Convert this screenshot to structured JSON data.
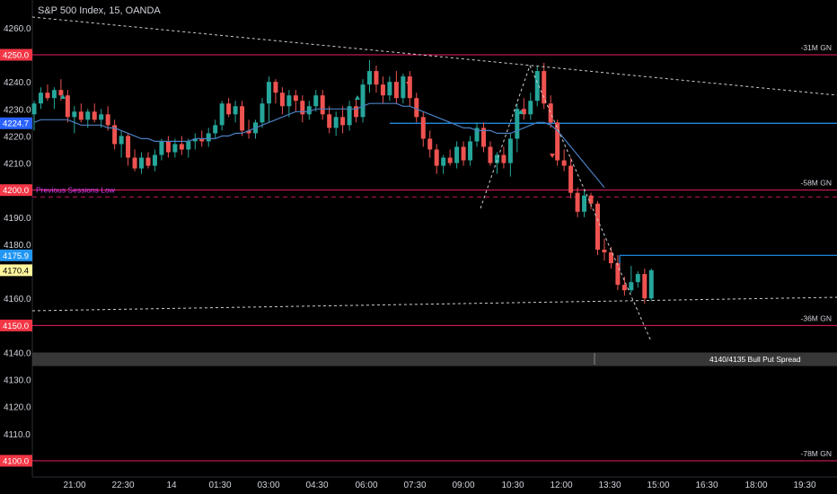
{
  "chart_data": {
    "type": "candlestick",
    "title": "S&P 500 Index, 15, OANDA",
    "x_ticks": [
      "21:00",
      "22:30",
      "14",
      "01:30",
      "03:00",
      "04:30",
      "06:00",
      "07:30",
      "09:00",
      "10:30",
      "12:00",
      "13:30",
      "15:00",
      "16:30",
      "18:00",
      "19:30"
    ],
    "y_ticks": [
      4260.0,
      4250.0,
      4240.0,
      4230.0,
      4220.0,
      4210.0,
      4200.0,
      4190.0,
      4180.0,
      4170.0,
      4160.0,
      4150.0,
      4140.0,
      4130.0,
      4120.0,
      4110.0,
      4100.0
    ],
    "ylim": [
      4095.6,
      4272.8
    ],
    "candles": [
      {
        "o": 4228,
        "h": 4233,
        "l": 4222,
        "c": 4232
      },
      {
        "o": 4232,
        "h": 4238,
        "l": 4230,
        "c": 4236
      },
      {
        "o": 4236,
        "h": 4239,
        "l": 4233,
        "c": 4234
      },
      {
        "o": 4234,
        "h": 4238,
        "l": 4230,
        "c": 4237
      },
      {
        "o": 4237,
        "h": 4241,
        "l": 4233,
        "c": 4235
      },
      {
        "o": 4235,
        "h": 4237,
        "l": 4225,
        "c": 4227
      },
      {
        "o": 4227,
        "h": 4231,
        "l": 4221,
        "c": 4229
      },
      {
        "o": 4229,
        "h": 4232,
        "l": 4225,
        "c": 4226
      },
      {
        "o": 4226,
        "h": 4230,
        "l": 4223,
        "c": 4229
      },
      {
        "o": 4229,
        "h": 4232,
        "l": 4225,
        "c": 4226
      },
      {
        "o": 4226,
        "h": 4230,
        "l": 4223,
        "c": 4228
      },
      {
        "o": 4228,
        "h": 4231,
        "l": 4222,
        "c": 4224
      },
      {
        "o": 4224,
        "h": 4226,
        "l": 4215,
        "c": 4217
      },
      {
        "o": 4217,
        "h": 4222,
        "l": 4212,
        "c": 4220
      },
      {
        "o": 4220,
        "h": 4221,
        "l": 4209,
        "c": 4212
      },
      {
        "o": 4212,
        "h": 4215,
        "l": 4207,
        "c": 4208
      },
      {
        "o": 4208,
        "h": 4214,
        "l": 4206,
        "c": 4212
      },
      {
        "o": 4212,
        "h": 4214,
        "l": 4208,
        "c": 4209
      },
      {
        "o": 4209,
        "h": 4215,
        "l": 4207,
        "c": 4213
      },
      {
        "o": 4213,
        "h": 4219,
        "l": 4211,
        "c": 4218
      },
      {
        "o": 4218,
        "h": 4220,
        "l": 4212,
        "c": 4214
      },
      {
        "o": 4214,
        "h": 4219,
        "l": 4212,
        "c": 4217
      },
      {
        "o": 4217,
        "h": 4220,
        "l": 4213,
        "c": 4215
      },
      {
        "o": 4215,
        "h": 4219,
        "l": 4212,
        "c": 4218
      },
      {
        "o": 4218,
        "h": 4221,
        "l": 4215,
        "c": 4219
      },
      {
        "o": 4219,
        "h": 4222,
        "l": 4216,
        "c": 4218
      },
      {
        "o": 4218,
        "h": 4223,
        "l": 4216,
        "c": 4221
      },
      {
        "o": 4221,
        "h": 4226,
        "l": 4219,
        "c": 4224
      },
      {
        "o": 4224,
        "h": 4233,
        "l": 4222,
        "c": 4232
      },
      {
        "o": 4232,
        "h": 4234,
        "l": 4227,
        "c": 4228
      },
      {
        "o": 4228,
        "h": 4233,
        "l": 4225,
        "c": 4231
      },
      {
        "o": 4231,
        "h": 4233,
        "l": 4220,
        "c": 4222
      },
      {
        "o": 4222,
        "h": 4226,
        "l": 4219,
        "c": 4221
      },
      {
        "o": 4221,
        "h": 4226,
        "l": 4219,
        "c": 4225
      },
      {
        "o": 4225,
        "h": 4234,
        "l": 4223,
        "c": 4232
      },
      {
        "o": 4232,
        "h": 4242,
        "l": 4225,
        "c": 4240
      },
      {
        "o": 4240,
        "h": 4241,
        "l": 4232,
        "c": 4236
      },
      {
        "o": 4236,
        "h": 4238,
        "l": 4228,
        "c": 4231
      },
      {
        "o": 4231,
        "h": 4237,
        "l": 4227,
        "c": 4235
      },
      {
        "o": 4235,
        "h": 4237,
        "l": 4229,
        "c": 4233
      },
      {
        "o": 4233,
        "h": 4235,
        "l": 4225,
        "c": 4228
      },
      {
        "o": 4228,
        "h": 4233,
        "l": 4226,
        "c": 4231
      },
      {
        "o": 4231,
        "h": 4237,
        "l": 4229,
        "c": 4235
      },
      {
        "o": 4235,
        "h": 4237,
        "l": 4226,
        "c": 4228
      },
      {
        "o": 4228,
        "h": 4231,
        "l": 4221,
        "c": 4223
      },
      {
        "o": 4223,
        "h": 4229,
        "l": 4220,
        "c": 4227
      },
      {
        "o": 4227,
        "h": 4231,
        "l": 4221,
        "c": 4224
      },
      {
        "o": 4224,
        "h": 4233,
        "l": 4222,
        "c": 4231
      },
      {
        "o": 4231,
        "h": 4234,
        "l": 4225,
        "c": 4227
      },
      {
        "o": 4227,
        "h": 4241,
        "l": 4225,
        "c": 4239
      },
      {
        "o": 4239,
        "h": 4248,
        "l": 4236,
        "c": 4244
      },
      {
        "o": 4244,
        "h": 4246,
        "l": 4236,
        "c": 4239
      },
      {
        "o": 4239,
        "h": 4242,
        "l": 4232,
        "c": 4235
      },
      {
        "o": 4235,
        "h": 4242,
        "l": 4233,
        "c": 4240
      },
      {
        "o": 4240,
        "h": 4244,
        "l": 4232,
        "c": 4234
      },
      {
        "o": 4234,
        "h": 4243,
        "l": 4232,
        "c": 4242
      },
      {
        "o": 4242,
        "h": 4244,
        "l": 4231,
        "c": 4234
      },
      {
        "o": 4234,
        "h": 4236,
        "l": 4225,
        "c": 4227
      },
      {
        "o": 4227,
        "h": 4229,
        "l": 4216,
        "c": 4219
      },
      {
        "o": 4219,
        "h": 4222,
        "l": 4212,
        "c": 4215
      },
      {
        "o": 4215,
        "h": 4217,
        "l": 4206,
        "c": 4209
      },
      {
        "o": 4209,
        "h": 4213,
        "l": 4206,
        "c": 4212
      },
      {
        "o": 4212,
        "h": 4215,
        "l": 4209,
        "c": 4210
      },
      {
        "o": 4210,
        "h": 4218,
        "l": 4208,
        "c": 4216
      },
      {
        "o": 4216,
        "h": 4218,
        "l": 4209,
        "c": 4211
      },
      {
        "o": 4211,
        "h": 4220,
        "l": 4209,
        "c": 4218
      },
      {
        "o": 4218,
        "h": 4225,
        "l": 4216,
        "c": 4223
      },
      {
        "o": 4223,
        "h": 4225,
        "l": 4214,
        "c": 4216
      },
      {
        "o": 4216,
        "h": 4218,
        "l": 4209,
        "c": 4210
      },
      {
        "o": 4210,
        "h": 4214,
        "l": 4206,
        "c": 4213
      },
      {
        "o": 4213,
        "h": 4216,
        "l": 4208,
        "c": 4210
      },
      {
        "o": 4210,
        "h": 4221,
        "l": 4205,
        "c": 4219
      },
      {
        "o": 4219,
        "h": 4232,
        "l": 4214,
        "c": 4230
      },
      {
        "o": 4230,
        "h": 4234,
        "l": 4226,
        "c": 4228
      },
      {
        "o": 4228,
        "h": 4236,
        "l": 4226,
        "c": 4233
      },
      {
        "o": 4233,
        "h": 4246,
        "l": 4231,
        "c": 4244
      },
      {
        "o": 4244,
        "h": 4247,
        "l": 4230,
        "c": 4232
      },
      {
        "o": 4232,
        "h": 4235,
        "l": 4223,
        "c": 4225
      },
      {
        "o": 4225,
        "h": 4226,
        "l": 4209,
        "c": 4211
      },
      {
        "o": 4211,
        "h": 4215,
        "l": 4207,
        "c": 4209
      },
      {
        "o": 4209,
        "h": 4212,
        "l": 4197,
        "c": 4199
      },
      {
        "o": 4199,
        "h": 4201,
        "l": 4190,
        "c": 4192
      },
      {
        "o": 4192,
        "h": 4200,
        "l": 4190,
        "c": 4198
      },
      {
        "o": 4198,
        "h": 4199,
        "l": 4193,
        "c": 4195
      },
      {
        "o": 4195,
        "h": 4196,
        "l": 4176,
        "c": 4178
      },
      {
        "o": 4178,
        "h": 4182,
        "l": 4174,
        "c": 4177
      },
      {
        "o": 4177,
        "h": 4179,
        "l": 4171,
        "c": 4173
      },
      {
        "o": 4173,
        "h": 4176,
        "l": 4163,
        "c": 4165
      },
      {
        "o": 4165,
        "h": 4168,
        "l": 4161,
        "c": 4163
      },
      {
        "o": 4163,
        "h": 4172,
        "l": 4162,
        "c": 4166
      },
      {
        "o": 4166,
        "h": 4170,
        "l": 4164,
        "c": 4169
      },
      {
        "o": 4169,
        "h": 4171,
        "l": 4158,
        "c": 4160
      },
      {
        "o": 4160,
        "h": 4171,
        "l": 4159,
        "c": 4170.4
      }
    ],
    "ma_line": [
      4225,
      4226,
      4226,
      4226,
      4226,
      4226,
      4225,
      4224,
      4224,
      4224,
      4224,
      4223,
      4223,
      4222,
      4221,
      4220,
      4219,
      4219,
      4218,
      4218,
      4218,
      4218,
      4218,
      4218,
      4219,
      4219,
      4219,
      4219,
      4220,
      4220,
      4221,
      4221,
      4222,
      4223,
      4224,
      4225,
      4226,
      4227,
      4228,
      4229,
      4229,
      4229,
      4230,
      4230,
      4230,
      4230,
      4230,
      4230,
      4230,
      4231,
      4232,
      4232,
      4232,
      4232,
      4232,
      4231,
      4231,
      4230,
      4229,
      4228,
      4227,
      4226,
      4225,
      4224,
      4223,
      4223,
      4222,
      4222,
      4222,
      4221,
      4221,
      4221,
      4222,
      4223,
      4224,
      4225,
      4225,
      4224,
      4222,
      4219,
      4216,
      4213,
      4210,
      4207,
      4204,
      4201
    ],
    "annotations": [
      {
        "text": "-31M GN",
        "y": 4250.0
      },
      {
        "text": "-58M GN",
        "y": 4200.0
      },
      {
        "text": "-36M GN",
        "y": 4150.0
      },
      {
        "text": "-78M GN",
        "y": 4100.0
      },
      {
        "text": "Previous Sessions Low",
        "y": 4200.0
      },
      {
        "text": "4140/4135 Bull Put Spread",
        "y": 4137.5
      }
    ],
    "price_labels": [
      {
        "text": "4250.0",
        "y": 4250.0,
        "color": "#f23645"
      },
      {
        "text": "4224.7",
        "y": 4224.7,
        "color": "#2962ff"
      },
      {
        "text": "4200.0",
        "y": 4200.0,
        "color": "#f23645"
      },
      {
        "text": "4175.9",
        "y": 4175.9,
        "color": "#2196f3"
      },
      {
        "text": "4170.4",
        "y": 4170.4,
        "color": "#fff59d"
      },
      {
        "text": "4150.0",
        "y": 4150.0,
        "color": "#f23645"
      },
      {
        "text": "4100.0",
        "y": 4100.0,
        "color": "#f23645"
      }
    ],
    "colors": {
      "up": "#26a69a",
      "down": "#ef5350",
      "ma": "#4a7fc1",
      "level": "#e91e63",
      "blue_level": "#2196f3",
      "pink_dash": "#c2185b",
      "zone": "#4a4a4a",
      "text": "#d1d4dc"
    }
  }
}
